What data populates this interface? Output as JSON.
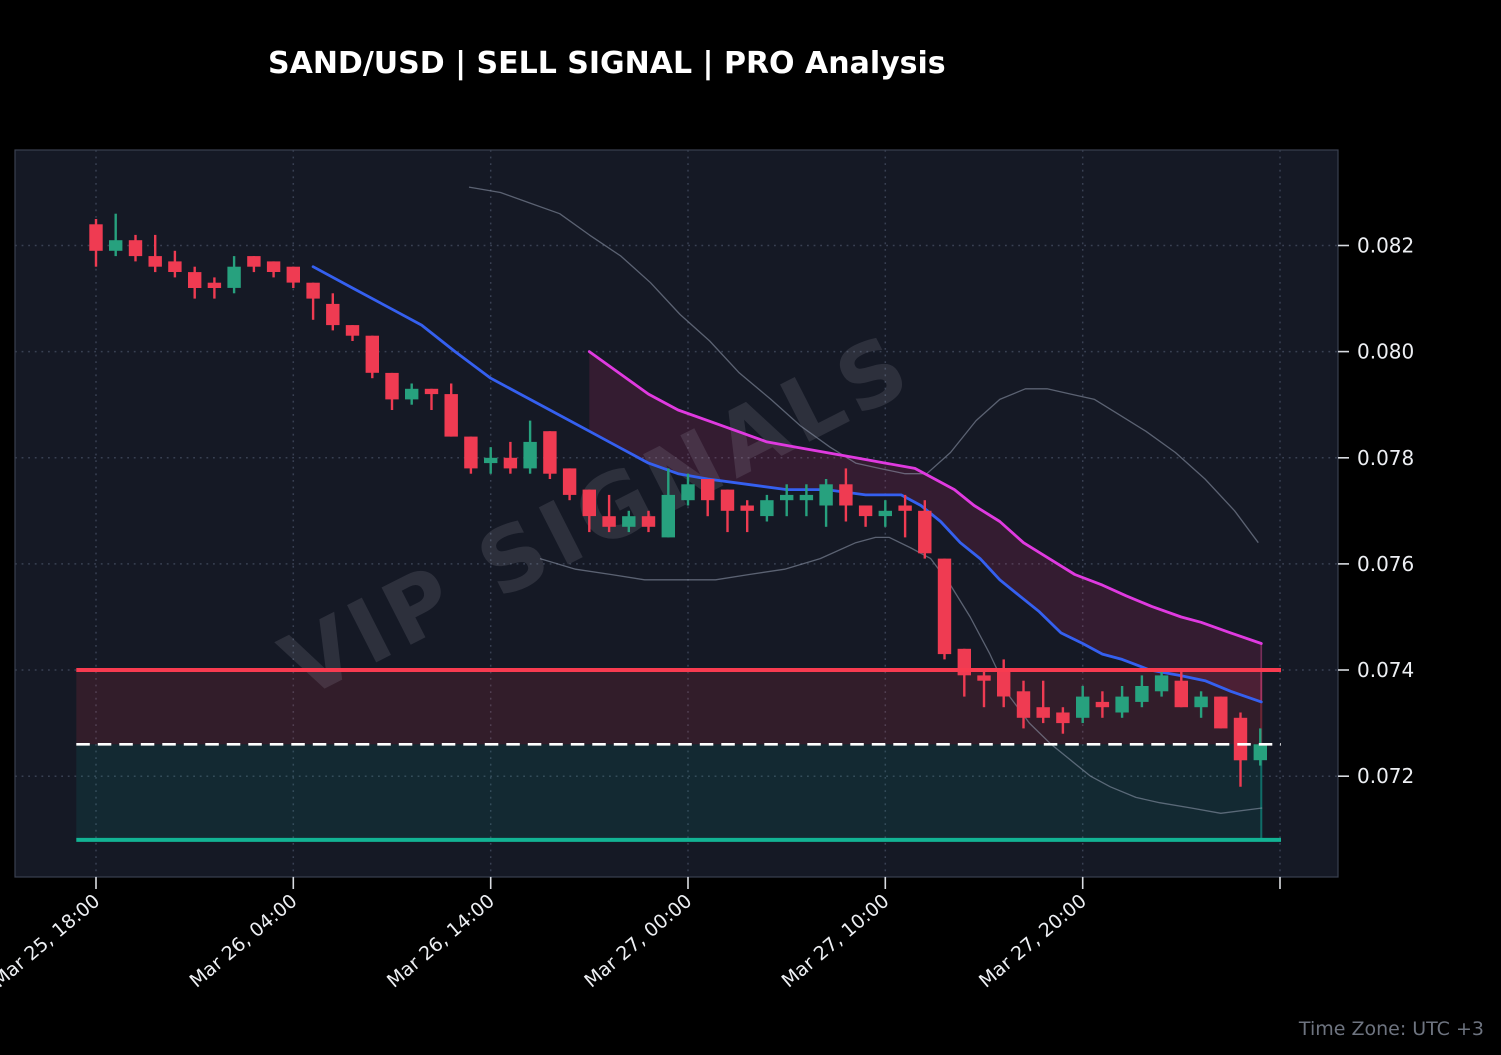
{
  "header": {
    "title": "SAND/USD | SELL SIGNAL | PRO Analysis"
  },
  "footer": {
    "timezone_note": "Time Zone: UTC +3"
  },
  "watermark": {
    "text": "VIP SIGNALS"
  },
  "colors": {
    "background": "#000000",
    "plot_bg": "#151925",
    "grid": "#394153",
    "border": "#3a4050",
    "bull": "#27a17e",
    "bear": "#ef3b52",
    "sma_blue": "#3560f0",
    "channel_magenta": "#e03ae0",
    "band_fill": "rgba(220,50,110,0.16)",
    "band_edge": "rgba(226,70,150,0.45)",
    "gray_band": "rgba(150,158,178,0.55)",
    "stop_line": "#f83b50",
    "entry_line": "#ffffff",
    "target_line": "#12b394",
    "zone_stop": "rgba(248,59,80,0.13)",
    "zone_target": "rgba(14,186,166,0.10)",
    "zone_stop_edge": "rgba(248,59,80,0.35)",
    "zone_target_edge": "rgba(14,186,166,0.50)",
    "axis_text": "#edeff3",
    "tick_mark": "#d9dce2",
    "muted_text": "#6e7480",
    "watermark": "rgba(188,193,208,0.14)"
  },
  "chart_data": {
    "type": "candlestick",
    "title": "SAND/USD | SELL SIGNAL | PRO Analysis",
    "interval_per_candle_hours": 1,
    "x_ticks": [
      {
        "label": "Mar 25, 18:00",
        "index": 0
      },
      {
        "label": "Mar 26, 04:00",
        "index": 10
      },
      {
        "label": "Mar 26, 14:00",
        "index": 20
      },
      {
        "label": "Mar 27, 00:00",
        "index": 30
      },
      {
        "label": "Mar 27, 10:00",
        "index": 40
      },
      {
        "label": "Mar 27, 20:00",
        "index": 50
      },
      {
        "label": "",
        "index": 60
      }
    ],
    "y_ticks": [
      0.072,
      0.074,
      0.076,
      0.078,
      0.08,
      0.082
    ],
    "y_tick_labels": [
      "0.072",
      "0.074",
      "0.076",
      "0.078",
      "0.080",
      "0.082"
    ],
    "y_range": [
      0.0701,
      0.0838
    ],
    "candles": [
      [
        0.0824,
        0.0825,
        0.0816,
        0.0819
      ],
      [
        0.0819,
        0.0826,
        0.0818,
        0.0821
      ],
      [
        0.0821,
        0.0822,
        0.0817,
        0.0818
      ],
      [
        0.0818,
        0.0822,
        0.0815,
        0.0816
      ],
      [
        0.0817,
        0.0819,
        0.0814,
        0.0815
      ],
      [
        0.0815,
        0.0816,
        0.081,
        0.0812
      ],
      [
        0.0813,
        0.0814,
        0.081,
        0.0812
      ],
      [
        0.0812,
        0.0818,
        0.0811,
        0.0816
      ],
      [
        0.0818,
        0.0818,
        0.0815,
        0.0816
      ],
      [
        0.0817,
        0.0817,
        0.0814,
        0.0815
      ],
      [
        0.0816,
        0.0816,
        0.0812,
        0.0813
      ],
      [
        0.0813,
        0.0813,
        0.0806,
        0.081
      ],
      [
        0.0809,
        0.0811,
        0.0804,
        0.0805
      ],
      [
        0.0805,
        0.0805,
        0.0802,
        0.0803
      ],
      [
        0.0803,
        0.0803,
        0.0795,
        0.0796
      ],
      [
        0.0796,
        0.0796,
        0.0789,
        0.0791
      ],
      [
        0.0791,
        0.0794,
        0.079,
        0.0793
      ],
      [
        0.0793,
        0.0793,
        0.0789,
        0.0792
      ],
      [
        0.0792,
        0.0794,
        0.0784,
        0.0784
      ],
      [
        0.0784,
        0.0784,
        0.0777,
        0.0778
      ],
      [
        0.0779,
        0.0782,
        0.0777,
        0.078
      ],
      [
        0.078,
        0.0783,
        0.0777,
        0.0778
      ],
      [
        0.0778,
        0.0787,
        0.0777,
        0.0783
      ],
      [
        0.0785,
        0.0785,
        0.0776,
        0.0777
      ],
      [
        0.0778,
        0.0778,
        0.0772,
        0.0773
      ],
      [
        0.0774,
        0.0774,
        0.0766,
        0.0769
      ],
      [
        0.0769,
        0.0773,
        0.0766,
        0.0767
      ],
      [
        0.0767,
        0.077,
        0.0766,
        0.0769
      ],
      [
        0.0769,
        0.077,
        0.0766,
        0.0767
      ],
      [
        0.0765,
        0.0778,
        0.0765,
        0.0773
      ],
      [
        0.0772,
        0.0777,
        0.0771,
        0.0775
      ],
      [
        0.0776,
        0.0776,
        0.0769,
        0.0772
      ],
      [
        0.0774,
        0.0774,
        0.0766,
        0.077
      ],
      [
        0.0771,
        0.0772,
        0.0766,
        0.077
      ],
      [
        0.0769,
        0.0773,
        0.0768,
        0.0772
      ],
      [
        0.0772,
        0.0775,
        0.0769,
        0.0773
      ],
      [
        0.0772,
        0.0775,
        0.0769,
        0.0773
      ],
      [
        0.0771,
        0.0776,
        0.0767,
        0.0775
      ],
      [
        0.0775,
        0.0778,
        0.0768,
        0.0771
      ],
      [
        0.0771,
        0.0771,
        0.0767,
        0.0769
      ],
      [
        0.0769,
        0.0772,
        0.0767,
        0.077
      ],
      [
        0.0771,
        0.0773,
        0.0765,
        0.077
      ],
      [
        0.077,
        0.0772,
        0.0761,
        0.0762
      ],
      [
        0.0761,
        0.0761,
        0.0742,
        0.0743
      ],
      [
        0.0744,
        0.0744,
        0.0735,
        0.0739
      ],
      [
        0.0739,
        0.074,
        0.0733,
        0.0738
      ],
      [
        0.074,
        0.0742,
        0.0733,
        0.0735
      ],
      [
        0.0736,
        0.0738,
        0.0729,
        0.0731
      ],
      [
        0.0733,
        0.0738,
        0.073,
        0.0731
      ],
      [
        0.0732,
        0.0733,
        0.0728,
        0.073
      ],
      [
        0.0731,
        0.0737,
        0.073,
        0.0735
      ],
      [
        0.0734,
        0.0736,
        0.0731,
        0.0733
      ],
      [
        0.0732,
        0.0737,
        0.0731,
        0.0735
      ],
      [
        0.0734,
        0.0739,
        0.0733,
        0.0737
      ],
      [
        0.0736,
        0.074,
        0.0735,
        0.0739
      ],
      [
        0.0738,
        0.074,
        0.0733,
        0.0733
      ],
      [
        0.0733,
        0.0736,
        0.0731,
        0.0735
      ],
      [
        0.0735,
        0.0735,
        0.0729,
        0.0729
      ],
      [
        0.0731,
        0.0732,
        0.0718,
        0.0723
      ],
      [
        0.0723,
        0.0729,
        0.0722,
        0.0726
      ]
    ],
    "overlays": {
      "sma_blue": {
        "name": "fast-ma",
        "points": [
          [
            11,
            0.0816
          ],
          [
            13,
            0.0812
          ],
          [
            15,
            0.0808
          ],
          [
            16.5,
            0.0805
          ],
          [
            18.2,
            0.08
          ],
          [
            20,
            0.0795
          ],
          [
            21.5,
            0.0792
          ],
          [
            23,
            0.0789
          ],
          [
            25,
            0.0785
          ],
          [
            26.5,
            0.0782
          ],
          [
            28,
            0.0779
          ],
          [
            29.5,
            0.0777
          ],
          [
            31,
            0.0776
          ],
          [
            33,
            0.0775
          ],
          [
            35,
            0.0774
          ],
          [
            37,
            0.0774
          ],
          [
            39,
            0.0773
          ],
          [
            40.8,
            0.0773
          ],
          [
            41.8,
            0.0771
          ],
          [
            42.8,
            0.0768
          ],
          [
            43.8,
            0.0764
          ],
          [
            44.8,
            0.0761
          ],
          [
            45.8,
            0.0757
          ],
          [
            46.8,
            0.0754
          ],
          [
            47.8,
            0.0751
          ],
          [
            48.9,
            0.0747
          ],
          [
            50,
            0.0745
          ],
          [
            51,
            0.0743
          ],
          [
            52,
            0.0742
          ],
          [
            53.4,
            0.074
          ],
          [
            54.9,
            0.0739
          ],
          [
            56.2,
            0.0738
          ],
          [
            57.5,
            0.0736
          ],
          [
            59.05,
            0.0734
          ]
        ]
      },
      "channel_magenta": {
        "name": "upper-channel",
        "points": [
          [
            25,
            0.08
          ],
          [
            26.5,
            0.0796
          ],
          [
            28,
            0.0792
          ],
          [
            29.5,
            0.0789
          ],
          [
            31,
            0.0787
          ],
          [
            32.5,
            0.0785
          ],
          [
            34,
            0.0783
          ],
          [
            35.5,
            0.0782
          ],
          [
            37,
            0.0781
          ],
          [
            38.5,
            0.078
          ],
          [
            40,
            0.0779
          ],
          [
            41.5,
            0.0778
          ],
          [
            42.5,
            0.0776
          ],
          [
            43.5,
            0.0774
          ],
          [
            44.5,
            0.0771
          ],
          [
            45.8,
            0.0768
          ],
          [
            47,
            0.0764
          ],
          [
            48.3,
            0.0761
          ],
          [
            49.6,
            0.0758
          ],
          [
            51,
            0.0756
          ],
          [
            52.2,
            0.0754
          ],
          [
            53.5,
            0.0752
          ],
          [
            55,
            0.075
          ],
          [
            56,
            0.0749
          ],
          [
            57.5,
            0.0747
          ],
          [
            59.05,
            0.0745
          ]
        ]
      },
      "band_fill": {
        "between": [
          "channel_magenta",
          "sma_blue"
        ],
        "from_index": 25,
        "to_index": 59.05
      },
      "bollinger_upper_gray": {
        "points": [
          [
            18.9,
            0.0831
          ],
          [
            20.5,
            0.083
          ],
          [
            22,
            0.0828
          ],
          [
            23.5,
            0.0826
          ],
          [
            25,
            0.0822
          ],
          [
            26.6,
            0.0818
          ],
          [
            28.1,
            0.0813
          ],
          [
            29.6,
            0.0807
          ],
          [
            31.1,
            0.0802
          ],
          [
            32.6,
            0.0796
          ],
          [
            34.2,
            0.0791
          ],
          [
            35.7,
            0.0786
          ],
          [
            37.2,
            0.0782
          ],
          [
            38.5,
            0.0779
          ],
          [
            39.7,
            0.0778
          ],
          [
            41,
            0.0777
          ],
          [
            42.1,
            0.0777
          ],
          [
            43.3,
            0.0781
          ],
          [
            44.6,
            0.0787
          ],
          [
            45.8,
            0.0791
          ],
          [
            47.1,
            0.0793
          ],
          [
            48.2,
            0.0793
          ],
          [
            49.4,
            0.0792
          ],
          [
            50.6,
            0.0791
          ],
          [
            51.9,
            0.0788
          ],
          [
            53.2,
            0.0785
          ],
          [
            54.7,
            0.0781
          ],
          [
            56.2,
            0.0776
          ],
          [
            57.7,
            0.077
          ],
          [
            58.9,
            0.0764
          ]
        ]
      },
      "bollinger_lower_gray": {
        "points": [
          [
            22.5,
            0.0761
          ],
          [
            24.3,
            0.0759
          ],
          [
            26.1,
            0.0758
          ],
          [
            27.8,
            0.0757
          ],
          [
            29.6,
            0.0757
          ],
          [
            31.4,
            0.0757
          ],
          [
            33.1,
            0.0758
          ],
          [
            34.9,
            0.0759
          ],
          [
            36.7,
            0.0761
          ],
          [
            38.5,
            0.0764
          ],
          [
            39.5,
            0.0765
          ],
          [
            40.2,
            0.0765
          ],
          [
            41.3,
            0.0763
          ],
          [
            42.3,
            0.0761
          ],
          [
            43.3,
            0.0756
          ],
          [
            44.3,
            0.075
          ],
          [
            45.3,
            0.0743
          ],
          [
            46.3,
            0.0735
          ],
          [
            47.3,
            0.073
          ],
          [
            48.4,
            0.0726
          ],
          [
            49.4,
            0.0723
          ],
          [
            50.4,
            0.072
          ],
          [
            51.4,
            0.0718
          ],
          [
            52.7,
            0.0716
          ],
          [
            53.9,
            0.0715
          ],
          [
            55.5,
            0.0714
          ],
          [
            57,
            0.0713
          ],
          [
            59.1,
            0.0714
          ]
        ]
      }
    },
    "levels": [
      {
        "name": "stop-loss-line",
        "price": 0.074,
        "style": "solid",
        "color_key": "stop_line",
        "width": 4
      },
      {
        "name": "entry-line",
        "price": 0.0726,
        "style": "dashed",
        "color_key": "entry_line",
        "width": 2.6
      },
      {
        "name": "take-profit-line",
        "price": 0.0708,
        "style": "solid",
        "color_key": "target_line",
        "width": 4
      }
    ],
    "zones": [
      {
        "name": "stop-zone",
        "from": 0.074,
        "to": 0.0726,
        "color_key": "zone_stop",
        "edge_key": "zone_stop_edge"
      },
      {
        "name": "profit-zone",
        "from": 0.0726,
        "to": 0.0708,
        "color_key": "zone_target",
        "edge_key": "zone_target_edge"
      }
    ],
    "layout_hint": {
      "levels_span_index": [
        -1,
        60.05
      ],
      "zones_span_index": [
        -1,
        59.05
      ],
      "grid": "dotted"
    }
  }
}
